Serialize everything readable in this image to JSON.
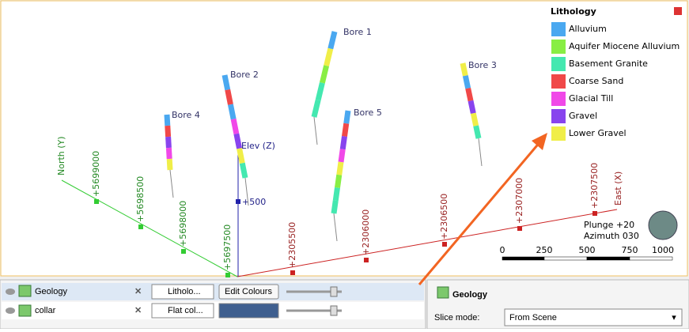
{
  "scene": {
    "legend": {
      "title": "Lithology",
      "items": [
        {
          "label": "Alluvium",
          "color": "#4aa8f0"
        },
        {
          "label": "Aquifer Miocene Alluvium",
          "color": "#88ee44"
        },
        {
          "label": "Basement Granite",
          "color": "#44e8b0"
        },
        {
          "label": "Coarse Sand",
          "color": "#f04848"
        },
        {
          "label": "Glacial Till",
          "color": "#f048e8"
        },
        {
          "label": "Gravel",
          "color": "#8844ee"
        },
        {
          "label": "Lower Gravel",
          "color": "#f0ee48"
        }
      ]
    },
    "bores": [
      "Bore 1",
      "Bore 2",
      "Bore 3",
      "Bore 4",
      "Bore 5"
    ],
    "axes": {
      "north": "North (Y)",
      "elev": "Elev (Z)",
      "east": "East (X)",
      "elev_tick": "+500",
      "north_ticks": [
        "+5699000",
        "+5698500",
        "+5698000",
        "+5697500"
      ],
      "east_ticks": [
        "+2305500",
        "+2306000",
        "+2306500",
        "+2307000",
        "+2307500"
      ]
    },
    "view": {
      "plunge": "Plunge +20",
      "azimuth": "Azimuth 030"
    },
    "scale_bar": [
      "0",
      "250",
      "500",
      "750",
      "1000"
    ]
  },
  "layers": [
    {
      "name": "Geology",
      "style": "Litholo...",
      "button": "Edit Colours"
    },
    {
      "name": "collar",
      "style": "Flat col..."
    }
  ],
  "properties": {
    "title": "Geology",
    "slice_label": "Slice mode:",
    "slice_value": "From Scene"
  }
}
